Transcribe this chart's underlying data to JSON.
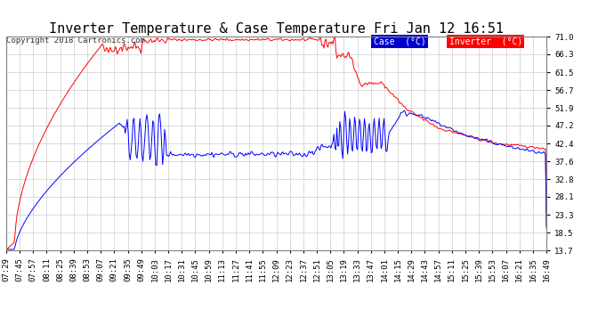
{
  "title": "Inverter Temperature & Case Temperature Fri Jan 12 16:51",
  "copyright": "Copyright 2018 Cartronics.com",
  "y_ticks": [
    13.7,
    18.5,
    23.3,
    28.1,
    32.8,
    37.6,
    42.4,
    47.2,
    51.9,
    56.7,
    61.5,
    66.3,
    71.0
  ],
  "y_min": 13.7,
  "y_max": 71.0,
  "x_labels": [
    "07:29",
    "07:45",
    "07:57",
    "08:11",
    "08:25",
    "08:39",
    "08:53",
    "09:07",
    "09:21",
    "09:35",
    "09:49",
    "10:03",
    "10:17",
    "10:31",
    "10:45",
    "10:59",
    "11:13",
    "11:27",
    "11:41",
    "11:55",
    "12:09",
    "12:23",
    "12:37",
    "12:51",
    "13:05",
    "13:19",
    "13:33",
    "13:47",
    "14:01",
    "14:15",
    "14:29",
    "14:43",
    "14:57",
    "15:11",
    "15:25",
    "15:39",
    "15:53",
    "16:07",
    "16:21",
    "16:35",
    "16:49"
  ],
  "bg_color": "#ffffff",
  "plot_bg_color": "#ffffff",
  "grid_color": "#cccccc",
  "case_color": "#0000ff",
  "inverter_color": "#ff0000",
  "legend_case_bg": "#0000cd",
  "legend_inverter_bg": "#ff0000",
  "legend_text_color": "#ffffff",
  "title_fontsize": 11,
  "tick_fontsize": 6.5,
  "copyright_fontsize": 6.5
}
